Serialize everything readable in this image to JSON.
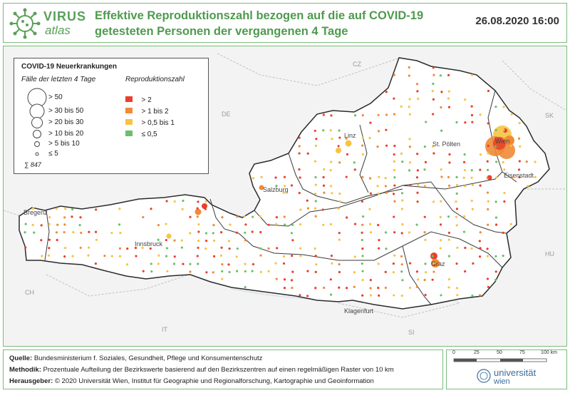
{
  "header": {
    "logo_virus": "VIRUS",
    "logo_atlas": "atlas",
    "title_line1": "Effektive Reproduktionszahl bezogen auf die auf COVID-19",
    "title_line2": "getesteten Personen der vergangenen 4 Tage",
    "timestamp": "26.08.2020 16:00"
  },
  "legend": {
    "title": "COVID-19 Neuerkrankungen",
    "size_heading": "Fälle der letzten 4 Tage",
    "size_classes": [
      "> 50",
      "> 30  bis  50",
      "> 20  bis  30",
      "> 10  bis  20",
      "> 5  bis  10",
      "≤ 5"
    ],
    "total": "∑ 847",
    "color_heading": "Reproduktionszahl",
    "color_classes": [
      {
        "label": "> 2",
        "color": "#e8402b"
      },
      {
        "label": "> 1  bis  2",
        "color": "#f08a36"
      },
      {
        "label": "> 0,5  bis  1",
        "color": "#f6c441"
      },
      {
        "label": "≤ 0,5",
        "color": "#6cbf6a"
      }
    ]
  },
  "map": {
    "countries": [
      "CZ",
      "DE",
      "SK",
      "HU",
      "CH",
      "IT",
      "SI"
    ],
    "cities": [
      "Linz",
      "St. Pölten",
      "Wien",
      "Eisenstadt",
      "Salzburg",
      "Bregenz",
      "Innsbruck",
      "Graz",
      "Klagenfurt"
    ]
  },
  "footer": {
    "source_label": "Quelle:",
    "source_text": "Bundesministerium f. Soziales, Gesundheit, Pflege und Konsumentenschutz",
    "method_label": "Methodik:",
    "method_text": "Prozentuale Aufteilung der Bezirkswerte basierend auf den Bezirkszentren auf einen regelmäßigen Raster von 10 km",
    "publisher_label": "Herausgeber:",
    "publisher_text": "© 2020 Universität Wien, Institut für Geographie und Regionalforschung, Kartographie und Geoinformation"
  },
  "scalebar": {
    "ticks": [
      "0",
      "25",
      "50",
      "75",
      "100 km"
    ],
    "university_line1": "universität",
    "university_line2": "wien"
  },
  "colors": {
    "accent": "#5aa05a",
    "frame": "#7dbb7d"
  }
}
